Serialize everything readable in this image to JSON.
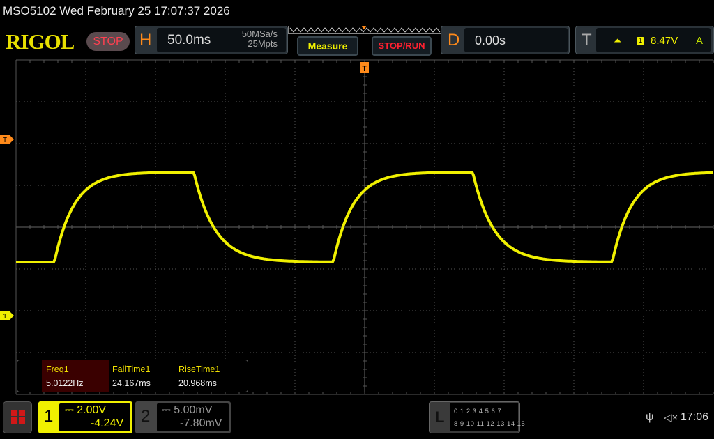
{
  "header": {
    "title": "MSO5102  Wed February 25 17:07:37 2026",
    "logo": "RIGOL",
    "run_state": "STOP"
  },
  "horizontal": {
    "label": "H",
    "timebase": "50.0ms",
    "sample_rate": "50MSa/s",
    "memory_depth": "25Mpts"
  },
  "buttons": {
    "measure": "Measure",
    "stop_run": "STOP/RUN"
  },
  "delay": {
    "label": "D",
    "value": "0.00s"
  },
  "trigger": {
    "label": "T",
    "slope_icon": "rising-edge-icon",
    "source": "1",
    "level": "8.47V",
    "mode": "A"
  },
  "markers": {
    "trigger_level": "T",
    "ch1_ground": "1",
    "trigger_position": "T"
  },
  "measurements": {
    "headers": [
      "Freq1",
      "FallTime1",
      "RiseTime1"
    ],
    "values": [
      "5.0122Hz",
      "24.167ms",
      "20.968ms"
    ]
  },
  "channels": [
    {
      "number": "1",
      "coupling_icon": "dc-coupling-icon",
      "scale": "2.00V",
      "offset": "-4.24V",
      "color": "#f0f000"
    },
    {
      "number": "2",
      "coupling_icon": "dc-coupling-icon",
      "scale": "5.00mV",
      "offset": "-7.80mV",
      "color": "#999999"
    }
  ],
  "logic": {
    "label": "L",
    "row1": "0 1 2 3  4 5 6 7",
    "row2": "8 9 10 11 12 13 14 15"
  },
  "status": {
    "usb_icon": "usb-icon",
    "sound_icon": "speaker-muted-icon",
    "time": "17:06"
  },
  "colors": {
    "ch1": "#f0f000",
    "accent": "#ff8a1a",
    "stop": "#ff2030"
  }
}
